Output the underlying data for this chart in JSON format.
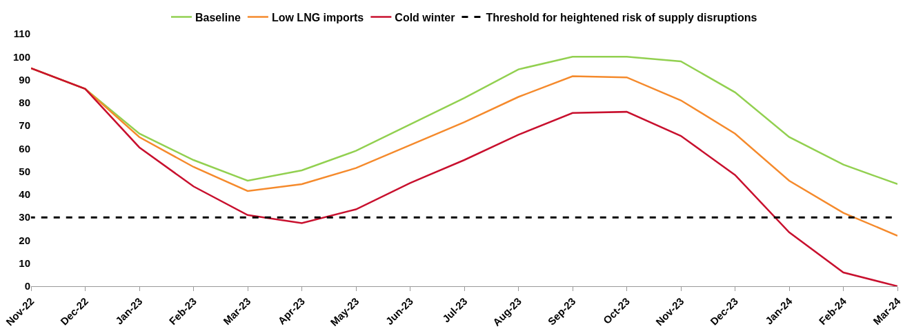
{
  "chart_data": {
    "type": "line",
    "categories": [
      "Nov-22",
      "Dec-22",
      "Jan-23",
      "Feb-23",
      "Mar-23",
      "Apr-23",
      "May-23",
      "Jun-23",
      "Jul-23",
      "Aug-23",
      "Sep-23",
      "Oct-23",
      "Nov-23",
      "Dec-23",
      "Jan-24",
      "Feb-24",
      "Mar-24"
    ],
    "series": [
      {
        "name": "Baseline",
        "color": "#92d050",
        "values": [
          95,
          86,
          66.5,
          55,
          46,
          50.5,
          59,
          70.5,
          82,
          94.5,
          100,
          100,
          98,
          84.5,
          65,
          53,
          44.5
        ]
      },
      {
        "name": "Low LNG imports",
        "color": "#f58a2c",
        "values": [
          95,
          86,
          65,
          52,
          41.5,
          44.5,
          51.5,
          61.5,
          71.5,
          82.5,
          91.5,
          91,
          81,
          66.5,
          46,
          32,
          22
        ]
      },
      {
        "name": "Cold winter",
        "color": "#c8102e",
        "values": [
          95,
          86,
          60.5,
          43.5,
          31,
          27.5,
          33.5,
          45,
          55,
          66,
          75.5,
          76,
          65.5,
          48.5,
          23.5,
          6,
          0
        ]
      }
    ],
    "ylim": [
      0,
      110
    ],
    "yticks": [
      0,
      10,
      20,
      30,
      40,
      50,
      60,
      70,
      80,
      90,
      100,
      110
    ],
    "grid": false,
    "legend": "top",
    "marker": "none",
    "line_style": "solid",
    "ref_lines": [
      {
        "axis": "y",
        "value": 30,
        "label": "Threshold for heightened risk of supply disruptions",
        "color": "#000000",
        "line_style": "dashed"
      }
    ]
  }
}
